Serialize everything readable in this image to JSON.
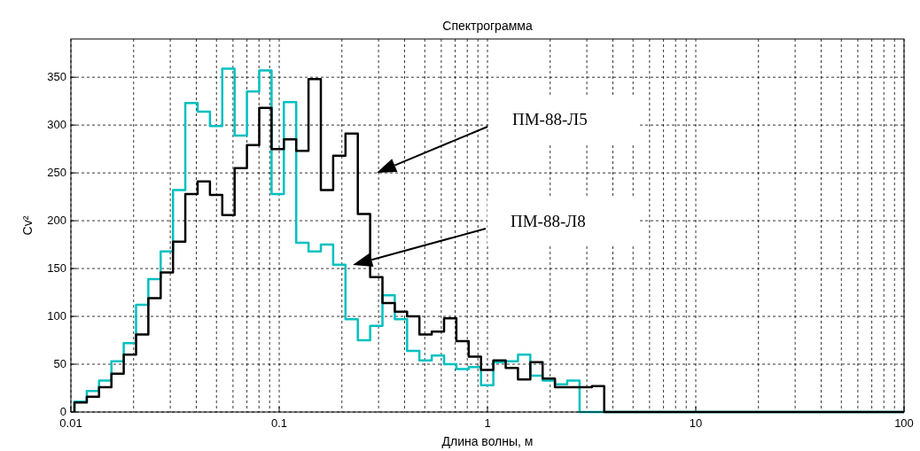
{
  "chart_data": {
    "type": "histogram",
    "title": "Спектрограмма",
    "xlabel": "Длина волны, м",
    "ylabel": "Cv²",
    "log": "x",
    "grid": true,
    "line_style": "solid",
    "xlim": [
      0.01,
      100
    ],
    "xticks": [
      0.01,
      0.1,
      1,
      10,
      100
    ],
    "ylim": [
      0,
      390
    ],
    "yticks": [
      0,
      50,
      100,
      150,
      200,
      250,
      300,
      350
    ],
    "bins": [
      0.0104,
      0.01192,
      0.01365,
      0.01565,
      0.01793,
      0.02055,
      0.02354,
      0.02698,
      0.03092,
      0.03542,
      0.04059,
      0.04651,
      0.0533,
      0.06109,
      0.07,
      0.08021,
      0.09192,
      0.1053,
      0.1207,
      0.1383,
      0.1585,
      0.1816,
      0.2081,
      0.2385,
      0.2733,
      0.3132,
      0.3589,
      0.4112,
      0.4712,
      0.54,
      0.6188,
      0.7091,
      0.8126,
      0.9312,
      1.067,
      1.223,
      1.401,
      1.606,
      1.84,
      2.108,
      2.415,
      2.768,
      3.172,
      3.635,
      100
    ],
    "series": [
      {
        "color": "#000000",
        "values": [
          10,
          16,
          26,
          40,
          60,
          81,
          119,
          146,
          178,
          228,
          241,
          227,
          206,
          255,
          279,
          318,
          275,
          285,
          273,
          348,
          232,
          268,
          291,
          207,
          141,
          114,
          105,
          100,
          81,
          84,
          98,
          74,
          58,
          44,
          54,
          46,
          34,
          52,
          35,
          26,
          26,
          26,
          27,
          0
        ]
      },
      {
        "color": "#00c0c0",
        "values": [
          11,
          22,
          33,
          53,
          72,
          112,
          139,
          168,
          232,
          323,
          314,
          299,
          359,
          289,
          335,
          357,
          228,
          324,
          177,
          168,
          175,
          154,
          97,
          75,
          90,
          122,
          97,
          64,
          54,
          59,
          50,
          45,
          47,
          28,
          52,
          53,
          60,
          38,
          33,
          29,
          33,
          0,
          0,
          0
        ]
      }
    ],
    "annotations": [
      "ПМ-88-Л5",
      "ПМ-88-Л8"
    ]
  }
}
